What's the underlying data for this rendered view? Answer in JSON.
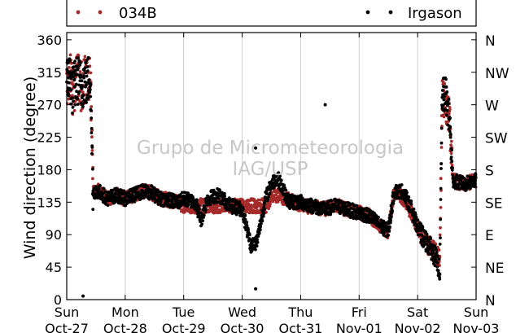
{
  "chart_data": {
    "type": "scatter",
    "title": "",
    "xlabel": "",
    "ylabel": "Wind direction (degree)",
    "ylim": [
      0,
      370
    ],
    "y_ticks": [
      0,
      45,
      90,
      135,
      180,
      225,
      270,
      315,
      360
    ],
    "y_right_ticks": [
      {
        "value": 0,
        "label": "N"
      },
      {
        "value": 45,
        "label": "NE"
      },
      {
        "value": 90,
        "label": "E"
      },
      {
        "value": 135,
        "label": "SE"
      },
      {
        "value": 180,
        "label": "S"
      },
      {
        "value": 225,
        "label": "SW"
      },
      {
        "value": 270,
        "label": "W"
      },
      {
        "value": 315,
        "label": "NW"
      },
      {
        "value": 360,
        "label": "N"
      }
    ],
    "x_ticks": [
      {
        "day": "Sun",
        "date": "Oct-27"
      },
      {
        "day": "Mon",
        "date": "Oct-28"
      },
      {
        "day": "Tue",
        "date": "Oct-29"
      },
      {
        "day": "Wed",
        "date": "Oct-30"
      },
      {
        "day": "Thu",
        "date": "Oct-31"
      },
      {
        "day": "Fri",
        "date": "Nov-01"
      },
      {
        "day": "Sat",
        "date": "Nov-02"
      },
      {
        "day": "Sun",
        "date": "Nov-03"
      }
    ],
    "grid": "vertical",
    "legend_position": "top",
    "watermark": [
      "Grupo de Micrometeorologia",
      "IAG/USP"
    ],
    "series": [
      {
        "name": "034B",
        "color": "#a52a2a",
        "day_means": [
          [
            0.0,
            300
          ],
          [
            0.05,
            310
          ],
          [
            0.1,
            290
          ],
          [
            0.15,
            300
          ],
          [
            0.2,
            305
          ],
          [
            0.25,
            295
          ],
          [
            0.3,
            305
          ],
          [
            0.35,
            300
          ],
          [
            0.4,
            315
          ],
          [
            0.45,
            150
          ],
          [
            0.55,
            150
          ],
          [
            0.7,
            140
          ],
          [
            0.85,
            145
          ],
          [
            1.0,
            140
          ],
          [
            1.15,
            145
          ],
          [
            1.3,
            150
          ],
          [
            1.45,
            148
          ],
          [
            1.6,
            140
          ],
          [
            1.75,
            138
          ],
          [
            1.9,
            135
          ],
          [
            2.0,
            130
          ],
          [
            2.2,
            130
          ],
          [
            2.4,
            130
          ],
          [
            2.6,
            130
          ],
          [
            2.8,
            130
          ],
          [
            3.0,
            130
          ],
          [
            3.2,
            130
          ],
          [
            3.4,
            130
          ],
          [
            3.5,
            140
          ],
          [
            3.6,
            145
          ],
          [
            3.8,
            138
          ],
          [
            4.0,
            132
          ],
          [
            4.2,
            128
          ],
          [
            4.4,
            125
          ],
          [
            4.6,
            130
          ],
          [
            4.8,
            125
          ],
          [
            5.0,
            120
          ],
          [
            5.2,
            115
          ],
          [
            5.4,
            100
          ],
          [
            5.5,
            95
          ],
          [
            5.6,
            150
          ],
          [
            5.75,
            140
          ],
          [
            5.9,
            120
          ],
          [
            6.0,
            100
          ],
          [
            6.1,
            85
          ],
          [
            6.2,
            75
          ],
          [
            6.3,
            65
          ],
          [
            6.38,
            55
          ],
          [
            6.42,
            280
          ],
          [
            6.48,
            275
          ],
          [
            6.55,
            245
          ],
          [
            6.6,
            165
          ],
          [
            6.8,
            160
          ],
          [
            7.0,
            165
          ]
        ]
      },
      {
        "name": "Irgason",
        "color": "#000000",
        "day_means": [
          [
            0.0,
            300
          ],
          [
            0.05,
            310
          ],
          [
            0.1,
            290
          ],
          [
            0.15,
            300
          ],
          [
            0.2,
            305
          ],
          [
            0.25,
            295
          ],
          [
            0.3,
            305
          ],
          [
            0.35,
            300
          ],
          [
            0.4,
            315
          ],
          [
            0.45,
            150
          ],
          [
            0.55,
            150
          ],
          [
            0.7,
            140
          ],
          [
            0.85,
            145
          ],
          [
            1.0,
            140
          ],
          [
            1.15,
            145
          ],
          [
            1.3,
            150
          ],
          [
            1.45,
            148
          ],
          [
            1.6,
            140
          ],
          [
            1.75,
            138
          ],
          [
            1.9,
            135
          ],
          [
            2.0,
            140
          ],
          [
            2.2,
            135
          ],
          [
            2.3,
            110
          ],
          [
            2.4,
            140
          ],
          [
            2.6,
            145
          ],
          [
            2.8,
            130
          ],
          [
            3.0,
            125
          ],
          [
            3.15,
            75
          ],
          [
            3.25,
            80
          ],
          [
            3.4,
            140
          ],
          [
            3.5,
            160
          ],
          [
            3.6,
            170
          ],
          [
            3.8,
            135
          ],
          [
            4.0,
            135
          ],
          [
            4.2,
            130
          ],
          [
            4.4,
            125
          ],
          [
            4.6,
            130
          ],
          [
            4.8,
            125
          ],
          [
            5.0,
            120
          ],
          [
            5.2,
            115
          ],
          [
            5.4,
            100
          ],
          [
            5.5,
            95
          ],
          [
            5.6,
            150
          ],
          [
            5.75,
            150
          ],
          [
            5.9,
            125
          ],
          [
            6.0,
            100
          ],
          [
            6.1,
            85
          ],
          [
            6.2,
            75
          ],
          [
            6.3,
            60
          ],
          [
            6.38,
            40
          ],
          [
            6.42,
            280
          ],
          [
            6.48,
            285
          ],
          [
            6.55,
            245
          ],
          [
            6.6,
            165
          ],
          [
            6.8,
            160
          ],
          [
            7.0,
            165
          ]
        ],
        "outliers": [
          [
            4.42,
            270
          ],
          [
            3.23,
            210
          ],
          [
            3.23,
            15
          ],
          [
            0.28,
            5
          ]
        ]
      }
    ]
  }
}
